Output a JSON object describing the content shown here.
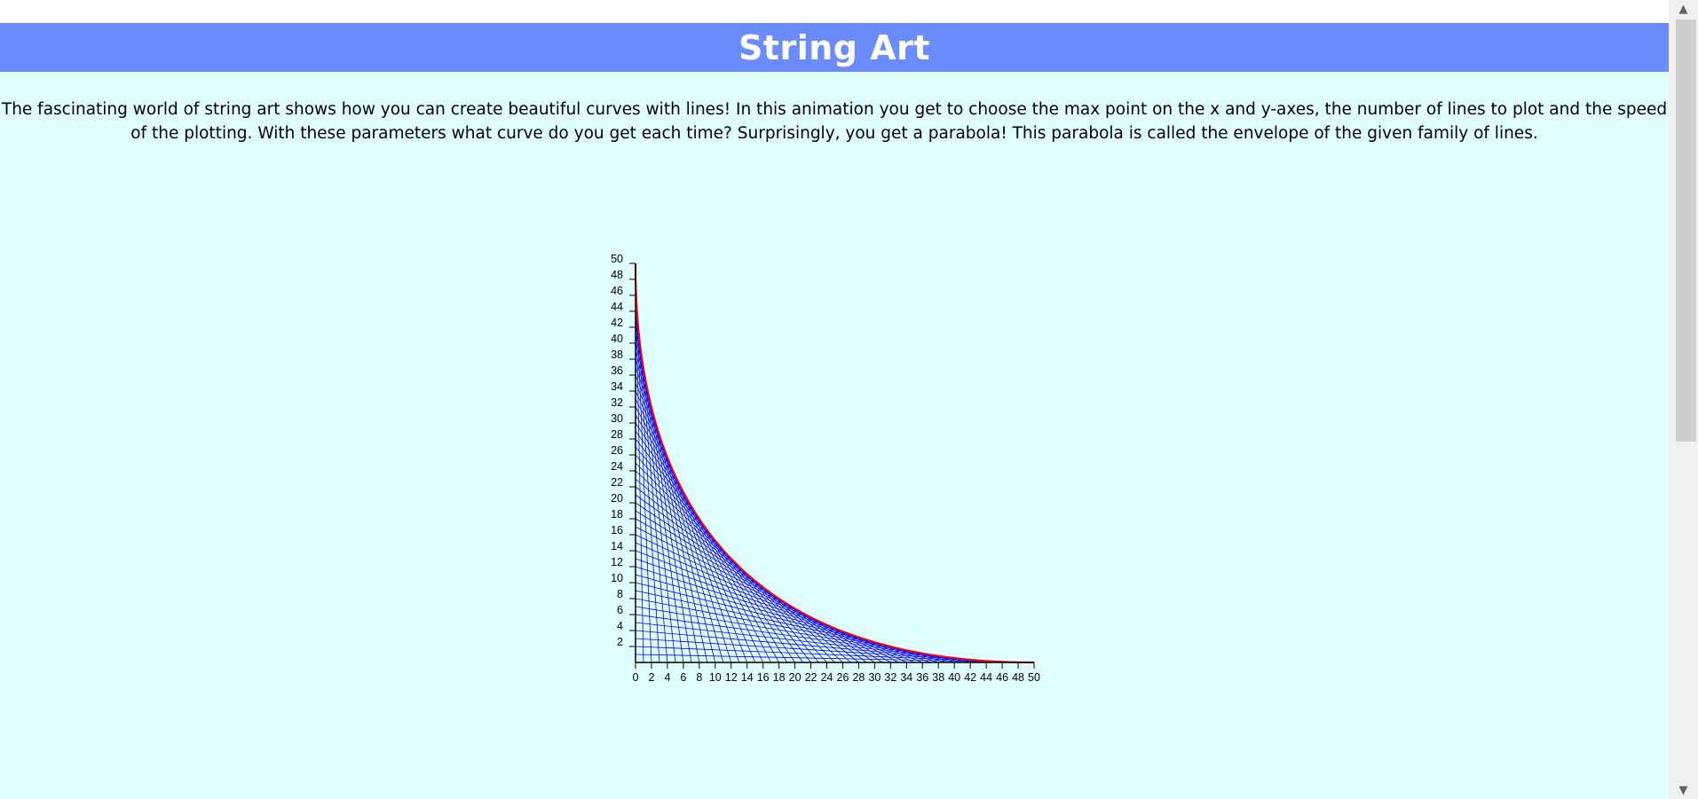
{
  "header": {
    "title": "String Art"
  },
  "intro": {
    "text_line1": "The fascinating world of string art shows how you can create beautiful curves with lines! In this animation you get to choose the max point on the x and y-axes, the number of lines to plot and the speed",
    "text_line2": "of the plotting. With these parameters what curve do you get each time? Surprisingly, you get a parabola! This parabola is called the envelope of the given family of lines."
  },
  "scrollbar": {
    "up_icon": "▲",
    "down_icon": "▼"
  },
  "colors": {
    "header_bg": "#6a8cff",
    "page_bg": "#e0ffff",
    "string_lines": "#0000ff",
    "envelope": "#ff0000",
    "axes": "#000000"
  },
  "chart_data": {
    "type": "line",
    "xlim": [
      0,
      50
    ],
    "ylim": [
      0,
      50
    ],
    "x_ticks": [
      "0",
      "2",
      "4",
      "6",
      "8",
      "10",
      "12",
      "14",
      "16",
      "18",
      "20",
      "22",
      "24",
      "26",
      "28",
      "30",
      "32",
      "34",
      "36",
      "38",
      "40",
      "42",
      "44",
      "46",
      "48",
      "50"
    ],
    "y_ticks": [
      "2",
      "4",
      "6",
      "8",
      "10",
      "12",
      "14",
      "16",
      "18",
      "20",
      "22",
      "24",
      "26",
      "28",
      "30",
      "32",
      "34",
      "36",
      "38",
      "40",
      "42",
      "44",
      "46",
      "48",
      "50"
    ],
    "max_x": 50,
    "max_y": 50,
    "num_lines": 50,
    "series": [
      {
        "values_rule": "lines from (0, max_y - k) to (k, 0)"
      },
      {
        "values_rule": "envelope parabola sqrt(x) + sqrt(y) = sqrt(50)"
      }
    ]
  }
}
